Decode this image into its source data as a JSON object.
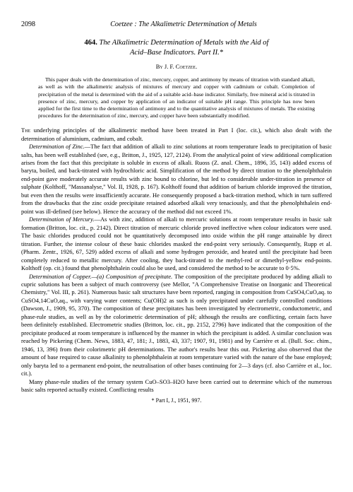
{
  "header": {
    "pageNumber": "2098",
    "runningTitle": "Coetzee : The Alkalimetric Determination of Metals"
  },
  "article": {
    "number": "464.",
    "titleLine1": "The Alkalimetric Determination of Metals with the Aid of",
    "titleLine2": "Acid–Base Indicators. Part II.*",
    "authorPrefix": "By ",
    "author": "J. F. Coetzee."
  },
  "abstract": {
    "text": "This paper deals with the determination of zinc, mercury, copper, and antimony by means of titration with standard alkali, as well as with the alkalimetric analysis of mixtures of mercury and copper with cadmium or cobalt. Completion of precipitation of the metal is determined with the aid of a suitable acid–base indicator. Similarly, free mineral acid is titrated in presence of zinc, mercury, and copper by application of an indicator of suitable pH range. This principle has now been applied for the first time to the determination of antimony and to the quantitative analysis of mixtures of metals. The existing procedures for the determination of zinc, mercury, and copper have been substantially modified."
  },
  "paragraphs": {
    "p1_start": "The",
    "p1_rest": " underlying principles of the alkalimetric method have been treated in Part I (loc. cit.), which also dealt with the determination of aluminium, cadmium, and cobalt.",
    "p2_heading": "Determination of Zinc.",
    "p2_text": "—The fact that addition of alkali to zinc solutions at room temperature leads to precipitation of basic salts, has been well established (see, e.g., Britton, J., 1925, 127, 2124). From the analytical point of view additional complication arises from the fact that this precipitate is soluble in excess of alkali. Ruoss (Z. anal. Chem., 1896, 35, 143) added excess of baryta, boiled, and back-titrated with hydrochloric acid. Simplification of the method by direct titration to the phenolphthalein end-point gave moderately accurate results with zinc bound to chlorine, but led to considerable under-titration in presence of sulphate (Kolthoff, \"Massanalyse,\" Vol. II, 1928, p. 167). Kolthoff found that addition of barium chloride improved the titration, but even then the results were insufficiently accurate. He consequently proposed a back-titration method, which in turn suffered from the drawbacks that the zinc oxide precipitate retained adsorbed alkali very tenaciously, and that the phenolphthalein end-point was ill-defined (see below). Hence the accuracy of the method did not exceed 1%.",
    "p3_heading": "Determination of Mercury.",
    "p3_text": "—As with zinc, addition of alkali to mercuric solutions at room temperature results in basic salt formation (Britton, loc. cit., p. 2142). Direct titration of mercuric chloride proved ineffective when colour indicators were used. The basic chlorides produced could not be quantitatively decomposed into oxide within the pH range attainable by direct titration. Further, the intense colour of these basic chlorides masked the end-point very seriously. Consequently, Rupp et al. (Pharm. Zentr., 1926, 67, 529) added excess of alkali and some hydrogen peroxide, and heated until the precipitate had been completely reduced to metallic mercury. After cooling, they back-titrated to the methyl-red or dimethyl-yellow end-points. Kolthoff (op. cit.) found that phenolphthalein could also be used, and considered the method to be accurate to 0·5%.",
    "p4_heading": "Determination of Copper.",
    "p4_subhead": "—(a) Composition of precipitate.",
    "p4_text": " The composition of the precipitate produced by adding alkali to cupric solutions has been a subject of much controversy (see Mellor, \"A Comprehensive Treatise on Inorganic and Theoretical Chemistry,\" Vol. III, p. 261). Numerous basic salt structures have been reported, ranging in composition from CuSO4,CuO,aq. to CuSO4,14CuO,aq., with varying water contents; Cu(OH)2 as such is only precipitated under carefully controlled conditions (Dawson, J., 1909, 95, 370). The composition of these precipitates has been investigated by electrometric, conductometric, and phase-rule studies, as well as by the colorimetric determination of pH; although the results are conflicting, certain facts have been definitely established. Electrometric studies (Britton, loc. cit., pp. 2152, 2796) have indicated that the composition of the precipitate produced at room temperature is influenced by the manner in which the precipitant is added. A similar conclusion was reached by Pickering (Chem. News, 1883, 47, 181; J., 1883, 43, 337; 1907, 91, 1981) and by Carrière et al. (Bull. Soc. chim., 1946, 13, 396) from their colorimetric pH determinations. The author's results bear this out. Pickering also observed that the amount of base required to cause alkalinity to phenolphthalein at room temperature varied with the nature of the base employed; only baryta led to a permanent end-point, the neutralisation of other bases continuing for 2—3 days (cf. also Carrière et al., loc. cit.).",
    "p5_text": "Many phase-rule studies of the ternary system CuO–SO3–H2O have been carried out to determine which of the numerous basic salts reported actually existed. Conflicting results"
  },
  "footnote": "* Part I, J., 1951, 997."
}
